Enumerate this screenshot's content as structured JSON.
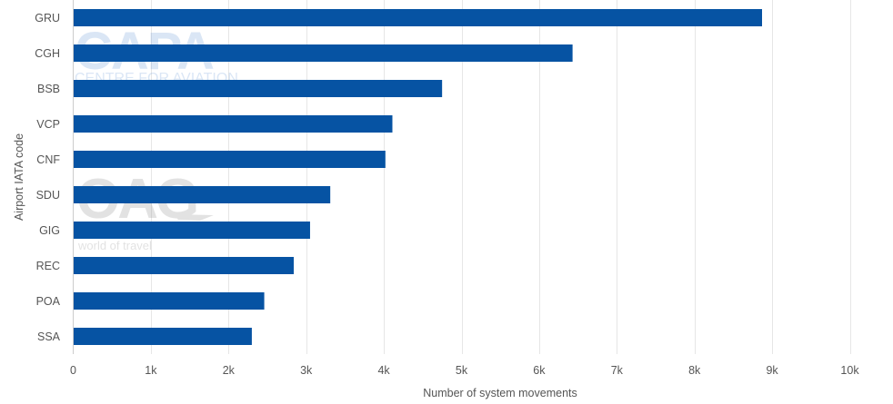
{
  "chart_data": {
    "type": "bar",
    "orientation": "horizontal",
    "categories": [
      "GRU",
      "CGH",
      "BSB",
      "VCP",
      "CNF",
      "SDU",
      "GIG",
      "REC",
      "POA",
      "SSA"
    ],
    "values": [
      8870,
      6430,
      4750,
      4110,
      4020,
      3310,
      3050,
      2840,
      2460,
      2300
    ],
    "xlabel": "Number of system movements",
    "ylabel": "Airport IATA code",
    "xlim": [
      0,
      10000
    ],
    "xticks": [
      0,
      1000,
      2000,
      3000,
      4000,
      5000,
      6000,
      7000,
      8000,
      9000,
      10000
    ],
    "xtick_labels": [
      "0",
      "1k",
      "2k",
      "3k",
      "4k",
      "5k",
      "6k",
      "7k",
      "8k",
      "9k",
      "10k"
    ],
    "grid": true,
    "bar_color": "#0653a3",
    "grid_color": "#e6e6e6"
  },
  "watermarks": {
    "capa_logo": "CAPA",
    "capa_tagline": "CENTRE FOR AVIATION",
    "oag_logo": "OAG",
    "oag_tagline": "world of travel"
  }
}
